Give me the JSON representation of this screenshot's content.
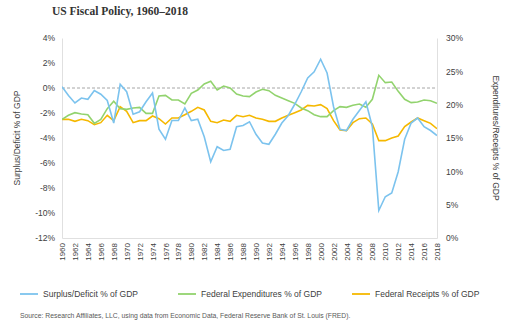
{
  "chart_data": {
    "type": "line",
    "title": "US Fiscal Policy, 1960–2018",
    "y_label": "Surplus/Deficit % of GDP",
    "y2_label": "Expenditures/Receipts % of GDP",
    "source": "Source: Research Affiliates, LLC, using data from Economic Data, Federal Reserve Bank of St. Louis (FRED).",
    "categories": [
      "1960",
      null,
      "1962",
      null,
      "1964",
      null,
      "1966",
      null,
      "1968",
      null,
      "1970",
      null,
      "1972",
      null,
      "1974",
      null,
      "1976",
      null,
      "1978",
      null,
      "1980",
      null,
      "1982",
      null,
      "1984",
      null,
      "1986",
      null,
      "1988",
      null,
      "1990",
      null,
      "1992",
      null,
      "1994",
      null,
      "1996",
      null,
      "1998",
      null,
      "2000",
      null,
      "2002",
      null,
      "2004",
      null,
      "2006",
      null,
      "2008",
      null,
      "2010",
      null,
      "2012",
      null,
      "2014",
      null,
      "2016",
      null,
      "2018"
    ],
    "ylim": [
      -12,
      4
    ],
    "yticks": [
      {
        "value": -12,
        "label": "-12%"
      },
      {
        "value": -10,
        "label": "-10%"
      },
      {
        "value": -8,
        "label": "-8%"
      },
      {
        "value": -6,
        "label": "-6%"
      },
      {
        "value": -4,
        "label": "-4%"
      },
      {
        "value": -2,
        "label": "-2%"
      },
      {
        "value": 0,
        "label": "0%"
      },
      {
        "value": 2,
        "label": "2%"
      },
      {
        "value": 4,
        "label": "4%"
      }
    ],
    "y2lim": [
      0,
      30
    ],
    "y2ticks": [
      {
        "value": 0,
        "label": "0%"
      },
      {
        "value": 5,
        "label": "5%"
      },
      {
        "value": 10,
        "label": "10%"
      },
      {
        "value": 15,
        "label": "15%"
      },
      {
        "value": 20,
        "label": "20%"
      },
      {
        "value": 25,
        "label": "25%"
      },
      {
        "value": 30,
        "label": "30%"
      }
    ],
    "reference_lines": [
      {
        "value": 0,
        "line_style": "dashed",
        "color": "#a6a6a6"
      }
    ],
    "grid": false,
    "legend": "bottom",
    "series": [
      {
        "name": "Surplus/Deficit % of GDP",
        "color": "#7cc3ee",
        "axis": "y",
        "values": [
          0.1,
          -0.6,
          -1.2,
          -0.8,
          -0.9,
          -0.2,
          -0.5,
          -1.0,
          -2.8,
          0.3,
          -0.3,
          -2.1,
          -1.9,
          -1.1,
          -0.4,
          -3.3,
          -4.1,
          -2.6,
          -2.6,
          -1.6,
          -2.6,
          -2.5,
          -3.9,
          -5.9,
          -4.7,
          -5.0,
          -4.9,
          -3.1,
          -3.0,
          -2.7,
          -3.7,
          -4.4,
          -4.5,
          -3.7,
          -2.8,
          -2.2,
          -1.3,
          -0.3,
          0.8,
          1.3,
          2.3,
          1.2,
          -1.5,
          -3.3,
          -3.4,
          -2.5,
          -1.8,
          -1.1,
          -3.1,
          -9.8,
          -8.7,
          -8.4,
          -6.7,
          -4.1,
          -2.8,
          -2.4,
          -3.1,
          -3.4,
          -3.8
        ]
      },
      {
        "name": "Federal Expenditures % of GDP",
        "color": "#92d36e",
        "axis": "y2",
        "values": [
          17.8,
          18.4,
          18.8,
          18.6,
          18.5,
          17.2,
          17.8,
          19.4,
          20.5,
          19.4,
          19.3,
          19.5,
          19.6,
          18.7,
          18.7,
          21.3,
          21.4,
          20.7,
          20.7,
          20.1,
          21.7,
          22.2,
          23.1,
          23.5,
          22.2,
          22.8,
          22.5,
          21.6,
          21.3,
          21.2,
          21.9,
          22.3,
          22.1,
          21.4,
          21.0,
          20.6,
          20.2,
          19.5,
          19.1,
          18.5,
          18.2,
          18.2,
          19.1,
          19.7,
          19.6,
          19.9,
          20.1,
          19.6,
          20.8,
          24.4,
          23.3,
          23.4,
          22.0,
          20.8,
          20.3,
          20.4,
          20.7,
          20.6,
          20.2
        ]
      },
      {
        "name": "Federal Receipts % of GDP",
        "color": "#f5b800",
        "axis": "y2",
        "values": [
          17.8,
          17.8,
          17.5,
          17.8,
          17.6,
          17.0,
          17.3,
          18.4,
          17.6,
          19.7,
          19.0,
          17.3,
          17.6,
          17.6,
          18.3,
          17.9,
          17.1,
          18.0,
          18.0,
          18.5,
          19.0,
          19.6,
          19.2,
          17.5,
          17.3,
          17.7,
          17.5,
          18.4,
          18.2,
          18.4,
          18.0,
          17.8,
          17.5,
          17.5,
          18.0,
          18.4,
          18.8,
          19.2,
          19.9,
          19.8,
          20.0,
          19.4,
          17.6,
          16.2,
          16.1,
          17.3,
          17.9,
          18.0,
          17.1,
          14.6,
          14.6,
          15.0,
          15.3,
          16.7,
          17.4,
          18.0,
          17.6,
          17.2,
          16.4
        ]
      }
    ]
  }
}
